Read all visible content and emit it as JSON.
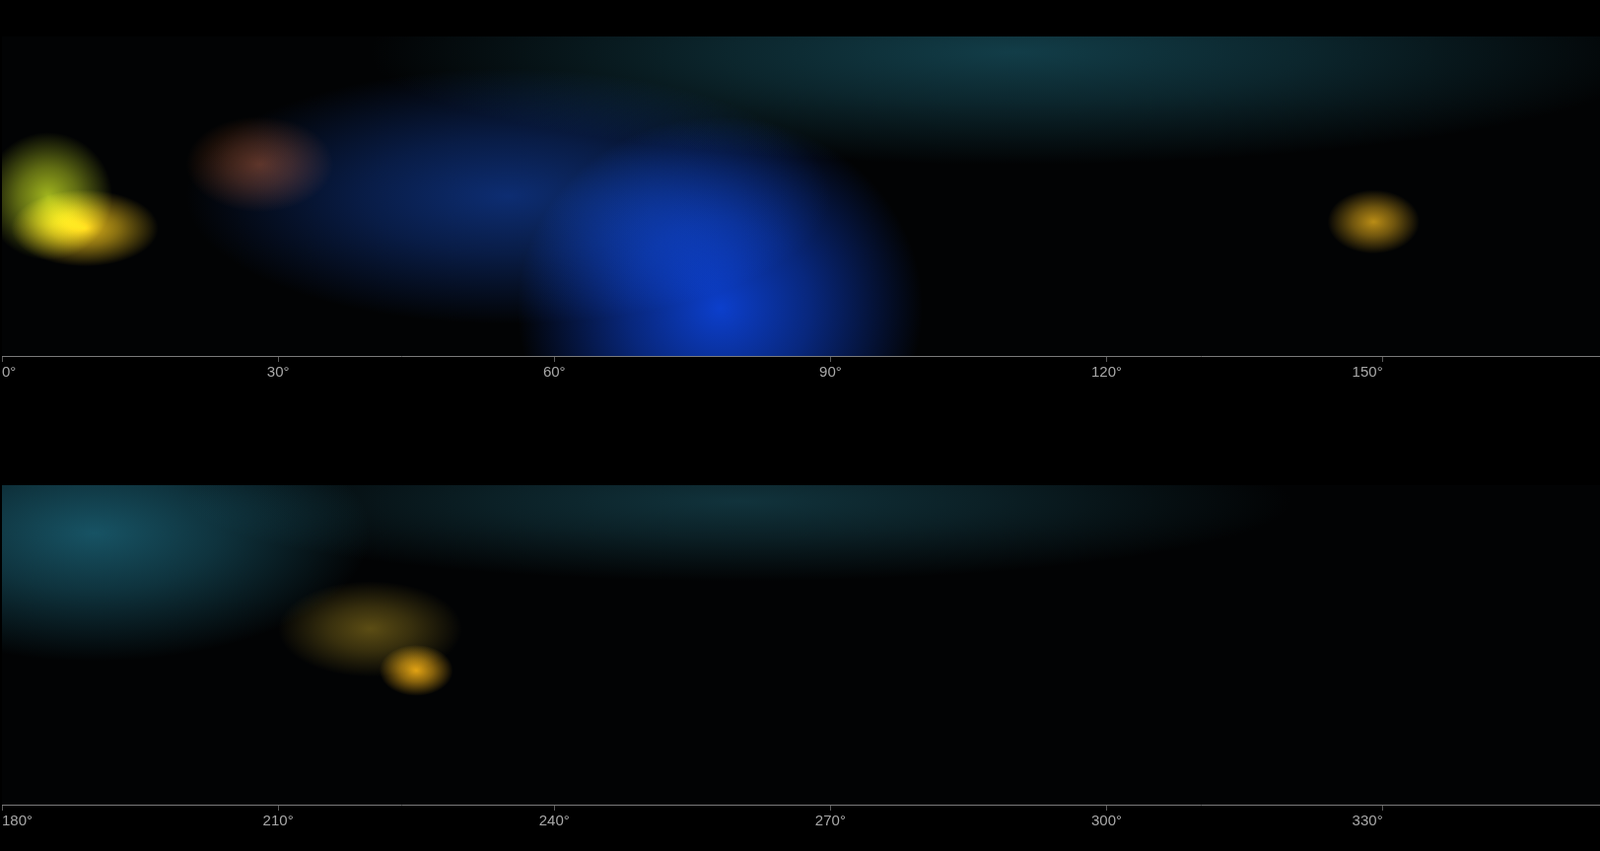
{
  "chart_data": [
    {
      "type": "scatter",
      "x": [
        110,
        55,
        78,
        5,
        9,
        28,
        149
      ],
      "values": [
        95,
        50,
        15,
        50,
        40,
        60,
        42
      ],
      "x_spread": [
        70,
        35,
        22,
        7,
        8,
        8,
        5
      ],
      "y_spread": [
        35,
        40,
        60,
        20,
        12,
        15,
        10
      ],
      "colors": [
        "#103a44",
        "#0b2a6e",
        "#0a3cc8",
        "#9fb21a",
        "#e0b416",
        "#5a2a10",
        "#b88a12"
      ],
      "xlim": [
        0,
        173.6
      ],
      "xticks": [
        {
          "value": 0,
          "label": "0°"
        },
        {
          "value": 30,
          "label": "30°"
        },
        {
          "value": 60,
          "label": "60°"
        },
        {
          "value": 90,
          "label": "90°"
        },
        {
          "value": 120,
          "label": "120°"
        },
        {
          "value": 150,
          "label": "150°"
        }
      ],
      "ylim": [
        0,
        100
      ],
      "tick_labels": "x",
      "grid": false
    },
    {
      "type": "scatter",
      "x": [
        190,
        260,
        220,
        225
      ],
      "values": [
        85,
        95,
        55,
        42
      ],
      "x_spread": [
        30,
        60,
        10,
        4
      ],
      "y_spread": [
        40,
        25,
        15,
        8
      ],
      "colors": [
        "#155060",
        "#0f3038",
        "#5a4a10",
        "#e0a010"
      ],
      "xlim": [
        180,
        353.6
      ],
      "xticks": [
        {
          "value": 180,
          "label": "180°"
        },
        {
          "value": 210,
          "label": "210°"
        },
        {
          "value": 240,
          "label": "240°"
        },
        {
          "value": 270,
          "label": "270°"
        },
        {
          "value": 300,
          "label": "300°"
        },
        {
          "value": 330,
          "label": "330°"
        }
      ],
      "ylim": [
        0,
        100
      ],
      "tick_labels": "x",
      "grid": false
    }
  ]
}
